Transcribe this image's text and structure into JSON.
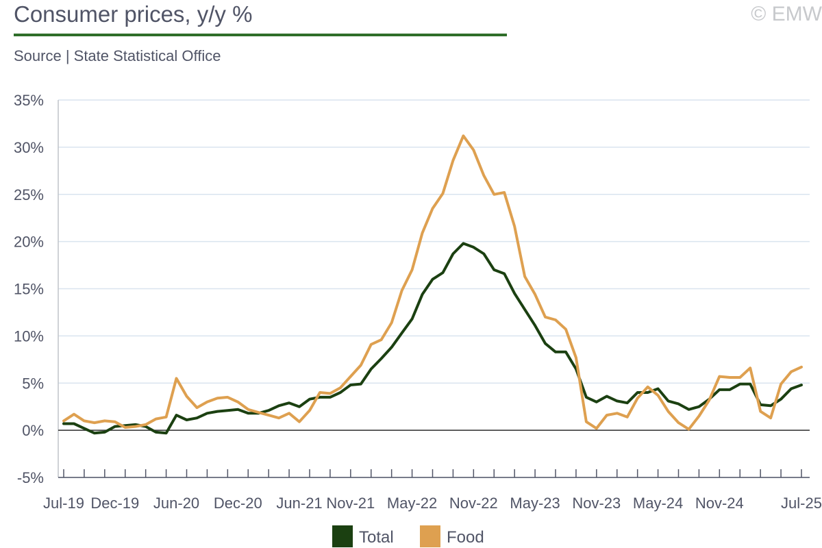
{
  "header": {
    "title": "Consumer prices, y/y %",
    "source": "Source | State Statistical Office",
    "copyright": "© EMW"
  },
  "colors": {
    "total": "#1b4011",
    "food": "#dea050",
    "grid": "#d9e4ef",
    "axis": "#505466",
    "rule": "#2f6e2a"
  },
  "chart_data": {
    "type": "line",
    "title": "Consumer prices, y/y %",
    "xlabel": "",
    "ylabel": "",
    "ylim": [
      -5,
      35
    ],
    "y_ticks": [
      -5,
      0,
      5,
      10,
      15,
      20,
      25,
      30,
      35
    ],
    "y_tick_labels": [
      "-5%",
      "0%",
      "5%",
      "10%",
      "15%",
      "20%",
      "25%",
      "30%",
      "35%"
    ],
    "grid": true,
    "legend_position": "bottom",
    "x": [
      "Jul-19",
      "Aug-19",
      "Sep-19",
      "Oct-19",
      "Nov-19",
      "Dec-19",
      "Jan-20",
      "Feb-20",
      "Mar-20",
      "Apr-20",
      "May-20",
      "Jun-20",
      "Jul-20",
      "Aug-20",
      "Sep-20",
      "Oct-20",
      "Nov-20",
      "Dec-20",
      "Jan-21",
      "Feb-21",
      "Mar-21",
      "Apr-21",
      "May-21",
      "Jun-21",
      "Jul-21",
      "Aug-21",
      "Sep-21",
      "Oct-21",
      "Nov-21",
      "Dec-21",
      "Jan-22",
      "Feb-22",
      "Mar-22",
      "Apr-22",
      "May-22",
      "Jun-22",
      "Jul-22",
      "Aug-22",
      "Sep-22",
      "Oct-22",
      "Nov-22",
      "Dec-22",
      "Jan-23",
      "Feb-23",
      "Mar-23",
      "Apr-23",
      "May-23",
      "Jun-23",
      "Jul-23",
      "Aug-23",
      "Sep-23",
      "Oct-23",
      "Nov-23",
      "Dec-23",
      "Jan-24",
      "Feb-24",
      "Mar-24",
      "Apr-24",
      "May-24",
      "Jun-24",
      "Jul-24",
      "Aug-24",
      "Sep-24",
      "Oct-24",
      "Nov-24",
      "Dec-24",
      "Jan-25",
      "Feb-25",
      "Mar-25",
      "Apr-25",
      "May-25",
      "Jun-25",
      "Jul-25"
    ],
    "x_tick_labels": [
      {
        "index": 0,
        "label": "Jul-19"
      },
      {
        "index": 5,
        "label": "Dec-19"
      },
      {
        "index": 11,
        "label": "Jun-20"
      },
      {
        "index": 17,
        "label": "Dec-20"
      },
      {
        "index": 23,
        "label": "Jun-21"
      },
      {
        "index": 28,
        "label": "Nov-21"
      },
      {
        "index": 34,
        "label": "May-22"
      },
      {
        "index": 40,
        "label": "Nov-22"
      },
      {
        "index": 46,
        "label": "May-23"
      },
      {
        "index": 52,
        "label": "Nov-23"
      },
      {
        "index": 58,
        "label": "May-24"
      },
      {
        "index": 64,
        "label": "Nov-24"
      },
      {
        "index": 72,
        "label": "Jul-25"
      }
    ],
    "series": [
      {
        "name": "Total",
        "color": "#1b4011",
        "values": [
          0.7,
          0.7,
          0.2,
          -0.3,
          -0.2,
          0.4,
          0.5,
          0.6,
          0.4,
          -0.2,
          -0.3,
          1.6,
          1.1,
          1.3,
          1.8,
          2.0,
          2.1,
          2.2,
          1.8,
          1.8,
          2.1,
          2.6,
          2.9,
          2.5,
          3.3,
          3.5,
          3.5,
          4.0,
          4.8,
          4.9,
          6.5,
          7.6,
          8.8,
          10.3,
          11.8,
          14.4,
          16.0,
          16.7,
          18.7,
          19.8,
          19.4,
          18.7,
          17.0,
          16.6,
          14.5,
          12.8,
          11.1,
          9.2,
          8.3,
          8.3,
          6.5,
          3.5,
          3.0,
          3.6,
          3.1,
          2.9,
          4.0,
          4.0,
          4.4,
          3.1,
          2.8,
          2.2,
          2.5,
          3.3,
          4.3,
          4.3,
          4.9,
          4.9,
          2.7,
          2.6,
          3.3,
          4.4,
          4.8
        ]
      },
      {
        "name": "Food",
        "color": "#dea050",
        "values": [
          1.0,
          1.7,
          1.0,
          0.8,
          1.0,
          0.9,
          0.3,
          0.4,
          0.6,
          1.2,
          1.4,
          5.5,
          3.6,
          2.4,
          3.0,
          3.4,
          3.5,
          3.0,
          2.2,
          1.9,
          1.6,
          1.3,
          1.8,
          0.9,
          2.1,
          4.0,
          3.9,
          4.5,
          5.7,
          6.9,
          9.1,
          9.6,
          11.4,
          14.8,
          17.0,
          20.9,
          23.5,
          25.1,
          28.6,
          31.2,
          29.7,
          27.0,
          25.0,
          25.2,
          21.6,
          16.3,
          14.4,
          12.0,
          11.7,
          10.7,
          7.7,
          0.9,
          0.2,
          1.6,
          1.8,
          1.4,
          3.4,
          4.6,
          3.7,
          2.0,
          0.8,
          0.1,
          1.5,
          3.2,
          5.7,
          5.6,
          5.6,
          6.6,
          2.0,
          1.3,
          4.9,
          6.2,
          6.7
        ]
      }
    ]
  }
}
